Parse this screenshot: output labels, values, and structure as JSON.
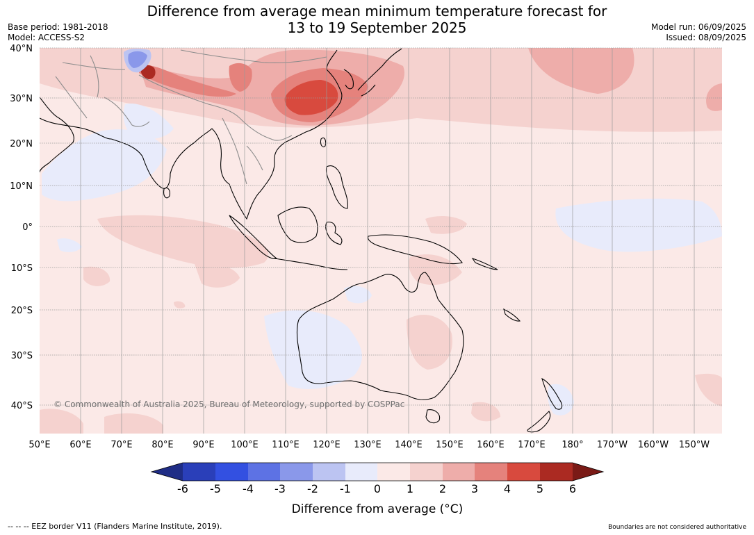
{
  "header": {
    "title_line1": "Difference from average mean minimum temperature forecast for",
    "title_line2": "13 to 19 September 2025",
    "base_period": "Base period: 1981-2018",
    "model": "Model: ACCESS-S2",
    "model_run": "Model run: 06/09/2025",
    "issued": "Issued: 08/09/2025"
  },
  "map": {
    "lon_labels": [
      "50°E",
      "60°E",
      "70°E",
      "80°E",
      "90°E",
      "100°E",
      "110°E",
      "120°E",
      "130°E",
      "140°E",
      "150°E",
      "160°E",
      "170°E",
      "180°",
      "170°W",
      "160°W",
      "150°W"
    ],
    "lat_labels": [
      "40°N",
      "30°N",
      "20°N",
      "10°N",
      "0°",
      "10°S",
      "20°S",
      "30°S",
      "40°S"
    ],
    "copyright": "© Commonwealth of Australia 2025, Bureau of Meteorology, supported by COSPPac",
    "colors": {
      "ocean_base": "#fbe9e7",
      "land_line": "#000000",
      "border_line": "#8c8c8c",
      "grid_line": "#9a9a9a"
    }
  },
  "colorbar": {
    "ticks": [
      "-6",
      "-5",
      "-4",
      "-3",
      "-2",
      "-1",
      "0",
      "1",
      "2",
      "3",
      "4",
      "5",
      "6"
    ],
    "label": "Difference from average (°C)",
    "colors": [
      "#1f2d86",
      "#2a3fb9",
      "#3350e1",
      "#5d72e4",
      "#8a98ea",
      "#bcc4f2",
      "#e8ebfb",
      "#fbe9e7",
      "#f5d2cf",
      "#eeadaa",
      "#e5827c",
      "#d84a3e",
      "#ab2a22",
      "#7a1a16"
    ]
  },
  "footer": {
    "eez": "--  --  -- EEZ border V11 (Flanders Marine Institute, 2019).",
    "disclaimer": "Boundaries are not considered authoritative"
  }
}
